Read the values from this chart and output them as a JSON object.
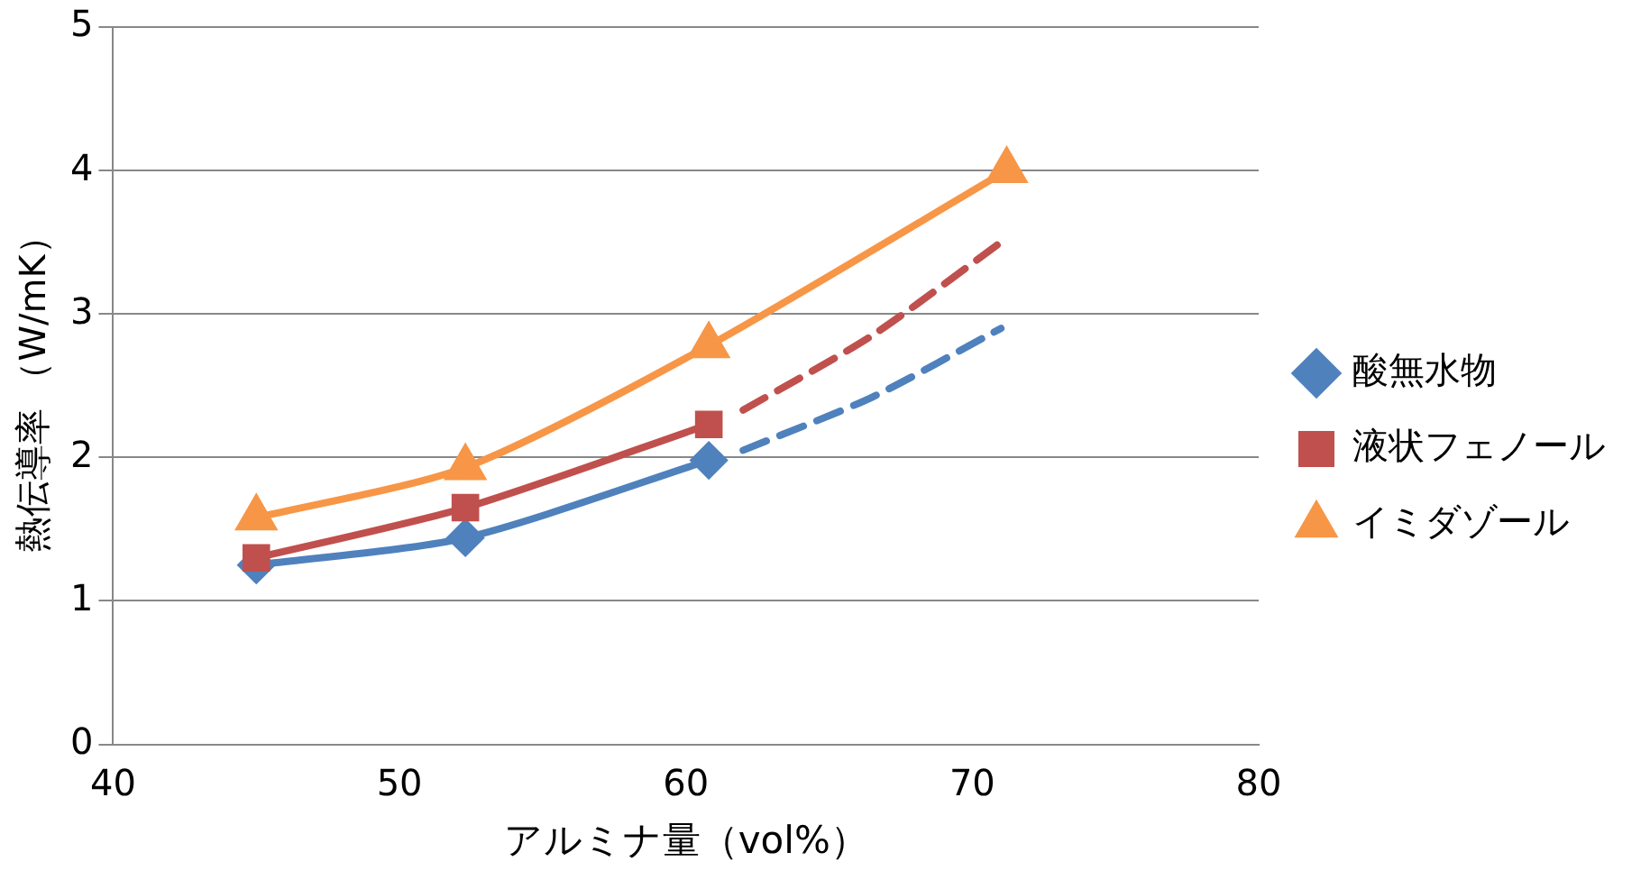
{
  "chart_data": {
    "type": "line",
    "xlabel": "アルミナ量（vol%）",
    "ylabel": "熱伝導率 （W/mK）",
    "xlim": [
      40,
      80
    ],
    "xticks": [
      40,
      50,
      60,
      70,
      80
    ],
    "ylim": [
      0,
      5
    ],
    "yticks": [
      0,
      1,
      2,
      3,
      4,
      5
    ],
    "grid": "y",
    "legend": "right",
    "line_style": "solid",
    "series": [
      {
        "name": "酸無水物",
        "color": "#4f81bd",
        "marker": "diamond",
        "x": [
          45,
          52.3,
          60.8
        ],
        "values": [
          1.25,
          1.44,
          1.98
        ]
      },
      {
        "name": "液状フェノール",
        "color": "#c0504d",
        "marker": "square",
        "x": [
          45,
          52.3,
          60.8
        ],
        "values": [
          1.3,
          1.65,
          2.23
        ]
      },
      {
        "name": "イミダゾール",
        "color": "#f79646",
        "marker": "triangle",
        "x": [
          45,
          52.3,
          60.8,
          71.2
        ],
        "values": [
          1.58,
          1.93,
          2.78,
          4.0
        ]
      },
      {
        "color": "#4f81bd",
        "marker": "none",
        "line_style": "dashed",
        "x": [
          62,
          66.5,
          71
        ],
        "values": [
          2.05,
          2.42,
          2.9
        ]
      },
      {
        "color": "#c0504d",
        "marker": "none",
        "line_style": "dashed",
        "x": [
          62,
          66.5,
          71
        ],
        "values": [
          2.33,
          2.85,
          3.5
        ]
      }
    ]
  }
}
